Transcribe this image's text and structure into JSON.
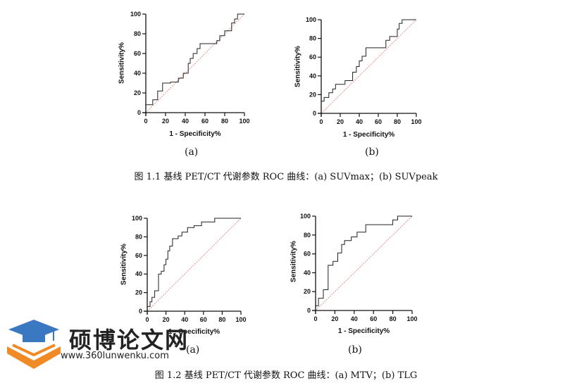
{
  "charts": [
    {
      "id": "a1",
      "sublabel": "(a)"
    },
    {
      "id": "b1",
      "sublabel": "(b)"
    },
    {
      "id": "a2",
      "sublabel": "(a)"
    },
    {
      "id": "b2",
      "sublabel": "(b)"
    }
  ],
  "captions": {
    "fig1": "图 1.1  基线 PET/CT 代谢参数 ROC 曲线：(a) SUVmax；(b) SUVpeak",
    "fig2": "图 1.2  基线 PET/CT 代谢参数 ROC 曲线：(a) MTV；(b) TLG"
  },
  "watermark": {
    "title": "硕博论文网",
    "url": "www.360lunwenku.com"
  },
  "colors": {
    "curve": "#222222",
    "reference": "#e07070",
    "axis": "#111111",
    "logo_blue": "#3a78c2",
    "logo_orange": "#f08a24"
  },
  "chart_data": [
    {
      "type": "line",
      "xlabel": "1 - Specificity%",
      "ylabel": "Sensitivity%",
      "xlim": [
        0,
        100
      ],
      "ylim": [
        0,
        100
      ],
      "xticks": [
        0,
        20,
        40,
        60,
        80,
        100
      ],
      "yticks": [
        0,
        20,
        40,
        60,
        80,
        100
      ],
      "series": [
        {
          "x": [
            0,
            0,
            7,
            7,
            12,
            12,
            17,
            17,
            25,
            25,
            33,
            33,
            38,
            38,
            43,
            43,
            45,
            45,
            48,
            48,
            52,
            52,
            55,
            55,
            72,
            72,
            75,
            75,
            80,
            80,
            87,
            87,
            90,
            90,
            93,
            93,
            100
          ],
          "y": [
            0,
            8,
            8,
            13,
            13,
            22,
            22,
            30,
            30,
            31,
            31,
            35,
            35,
            40,
            40,
            50,
            50,
            55,
            55,
            60,
            60,
            65,
            65,
            70,
            70,
            73,
            73,
            78,
            78,
            83,
            83,
            91,
            91,
            95,
            95,
            100,
            100
          ]
        },
        {
          "x": [
            0,
            100
          ],
          "y": [
            0,
            100
          ]
        }
      ]
    },
    {
      "type": "line",
      "xlabel": "1 - Specificity%",
      "ylabel": "Sensitivity%",
      "xlim": [
        0,
        100
      ],
      "ylim": [
        0,
        100
      ],
      "xticks": [
        0,
        20,
        40,
        60,
        80,
        100
      ],
      "yticks": [
        0,
        20,
        40,
        60,
        80,
        100
      ],
      "series": [
        {
          "x": [
            0,
            0,
            3,
            3,
            8,
            8,
            12,
            12,
            15,
            15,
            25,
            25,
            33,
            33,
            37,
            37,
            40,
            40,
            43,
            43,
            47,
            47,
            68,
            68,
            72,
            72,
            80,
            80,
            82,
            82,
            85,
            85,
            100
          ],
          "y": [
            0,
            13,
            13,
            17,
            17,
            22,
            22,
            26,
            26,
            31,
            31,
            35,
            35,
            44,
            44,
            50,
            50,
            56,
            56,
            61,
            61,
            70,
            70,
            78,
            78,
            82,
            82,
            90,
            90,
            96,
            96,
            100,
            100
          ]
        },
        {
          "x": [
            0,
            100
          ],
          "y": [
            0,
            100
          ]
        }
      ]
    },
    {
      "type": "line",
      "xlabel": "1 - Specificity%",
      "ylabel": "Sensitivity%",
      "xlim": [
        0,
        100
      ],
      "ylim": [
        0,
        100
      ],
      "xticks": [
        0,
        20,
        40,
        60,
        80,
        100
      ],
      "yticks": [
        0,
        20,
        40,
        60,
        80,
        100
      ],
      "series": [
        {
          "x": [
            0,
            0,
            3,
            3,
            5,
            5,
            8,
            8,
            12,
            12,
            15,
            15,
            18,
            18,
            20,
            20,
            22,
            22,
            24,
            24,
            27,
            27,
            33,
            33,
            37,
            37,
            43,
            43,
            50,
            50,
            58,
            58,
            72,
            72,
            100
          ],
          "y": [
            0,
            5,
            5,
            10,
            10,
            15,
            15,
            22,
            22,
            40,
            40,
            43,
            43,
            50,
            50,
            56,
            56,
            65,
            65,
            70,
            70,
            78,
            78,
            81,
            81,
            85,
            85,
            90,
            90,
            92,
            92,
            96,
            96,
            100,
            100
          ]
        },
        {
          "x": [
            0,
            100
          ],
          "y": [
            0,
            100
          ]
        }
      ]
    },
    {
      "type": "line",
      "xlabel": "1 - Specificity%",
      "ylabel": "Sensitivity%",
      "xlim": [
        0,
        100
      ],
      "ylim": [
        0,
        100
      ],
      "xticks": [
        0,
        20,
        40,
        60,
        80,
        100
      ],
      "yticks": [
        0,
        20,
        40,
        60,
        80,
        100
      ],
      "series": [
        {
          "x": [
            0,
            0,
            3,
            3,
            8,
            8,
            13,
            13,
            18,
            18,
            23,
            23,
            27,
            27,
            30,
            30,
            37,
            37,
            43,
            43,
            52,
            52,
            80,
            80,
            85,
            85,
            100
          ],
          "y": [
            0,
            5,
            5,
            13,
            13,
            22,
            22,
            48,
            48,
            52,
            52,
            61,
            61,
            70,
            70,
            74,
            74,
            78,
            78,
            83,
            83,
            91,
            91,
            96,
            96,
            100,
            100
          ]
        },
        {
          "x": [
            0,
            100
          ],
          "y": [
            0,
            100
          ]
        }
      ]
    }
  ]
}
